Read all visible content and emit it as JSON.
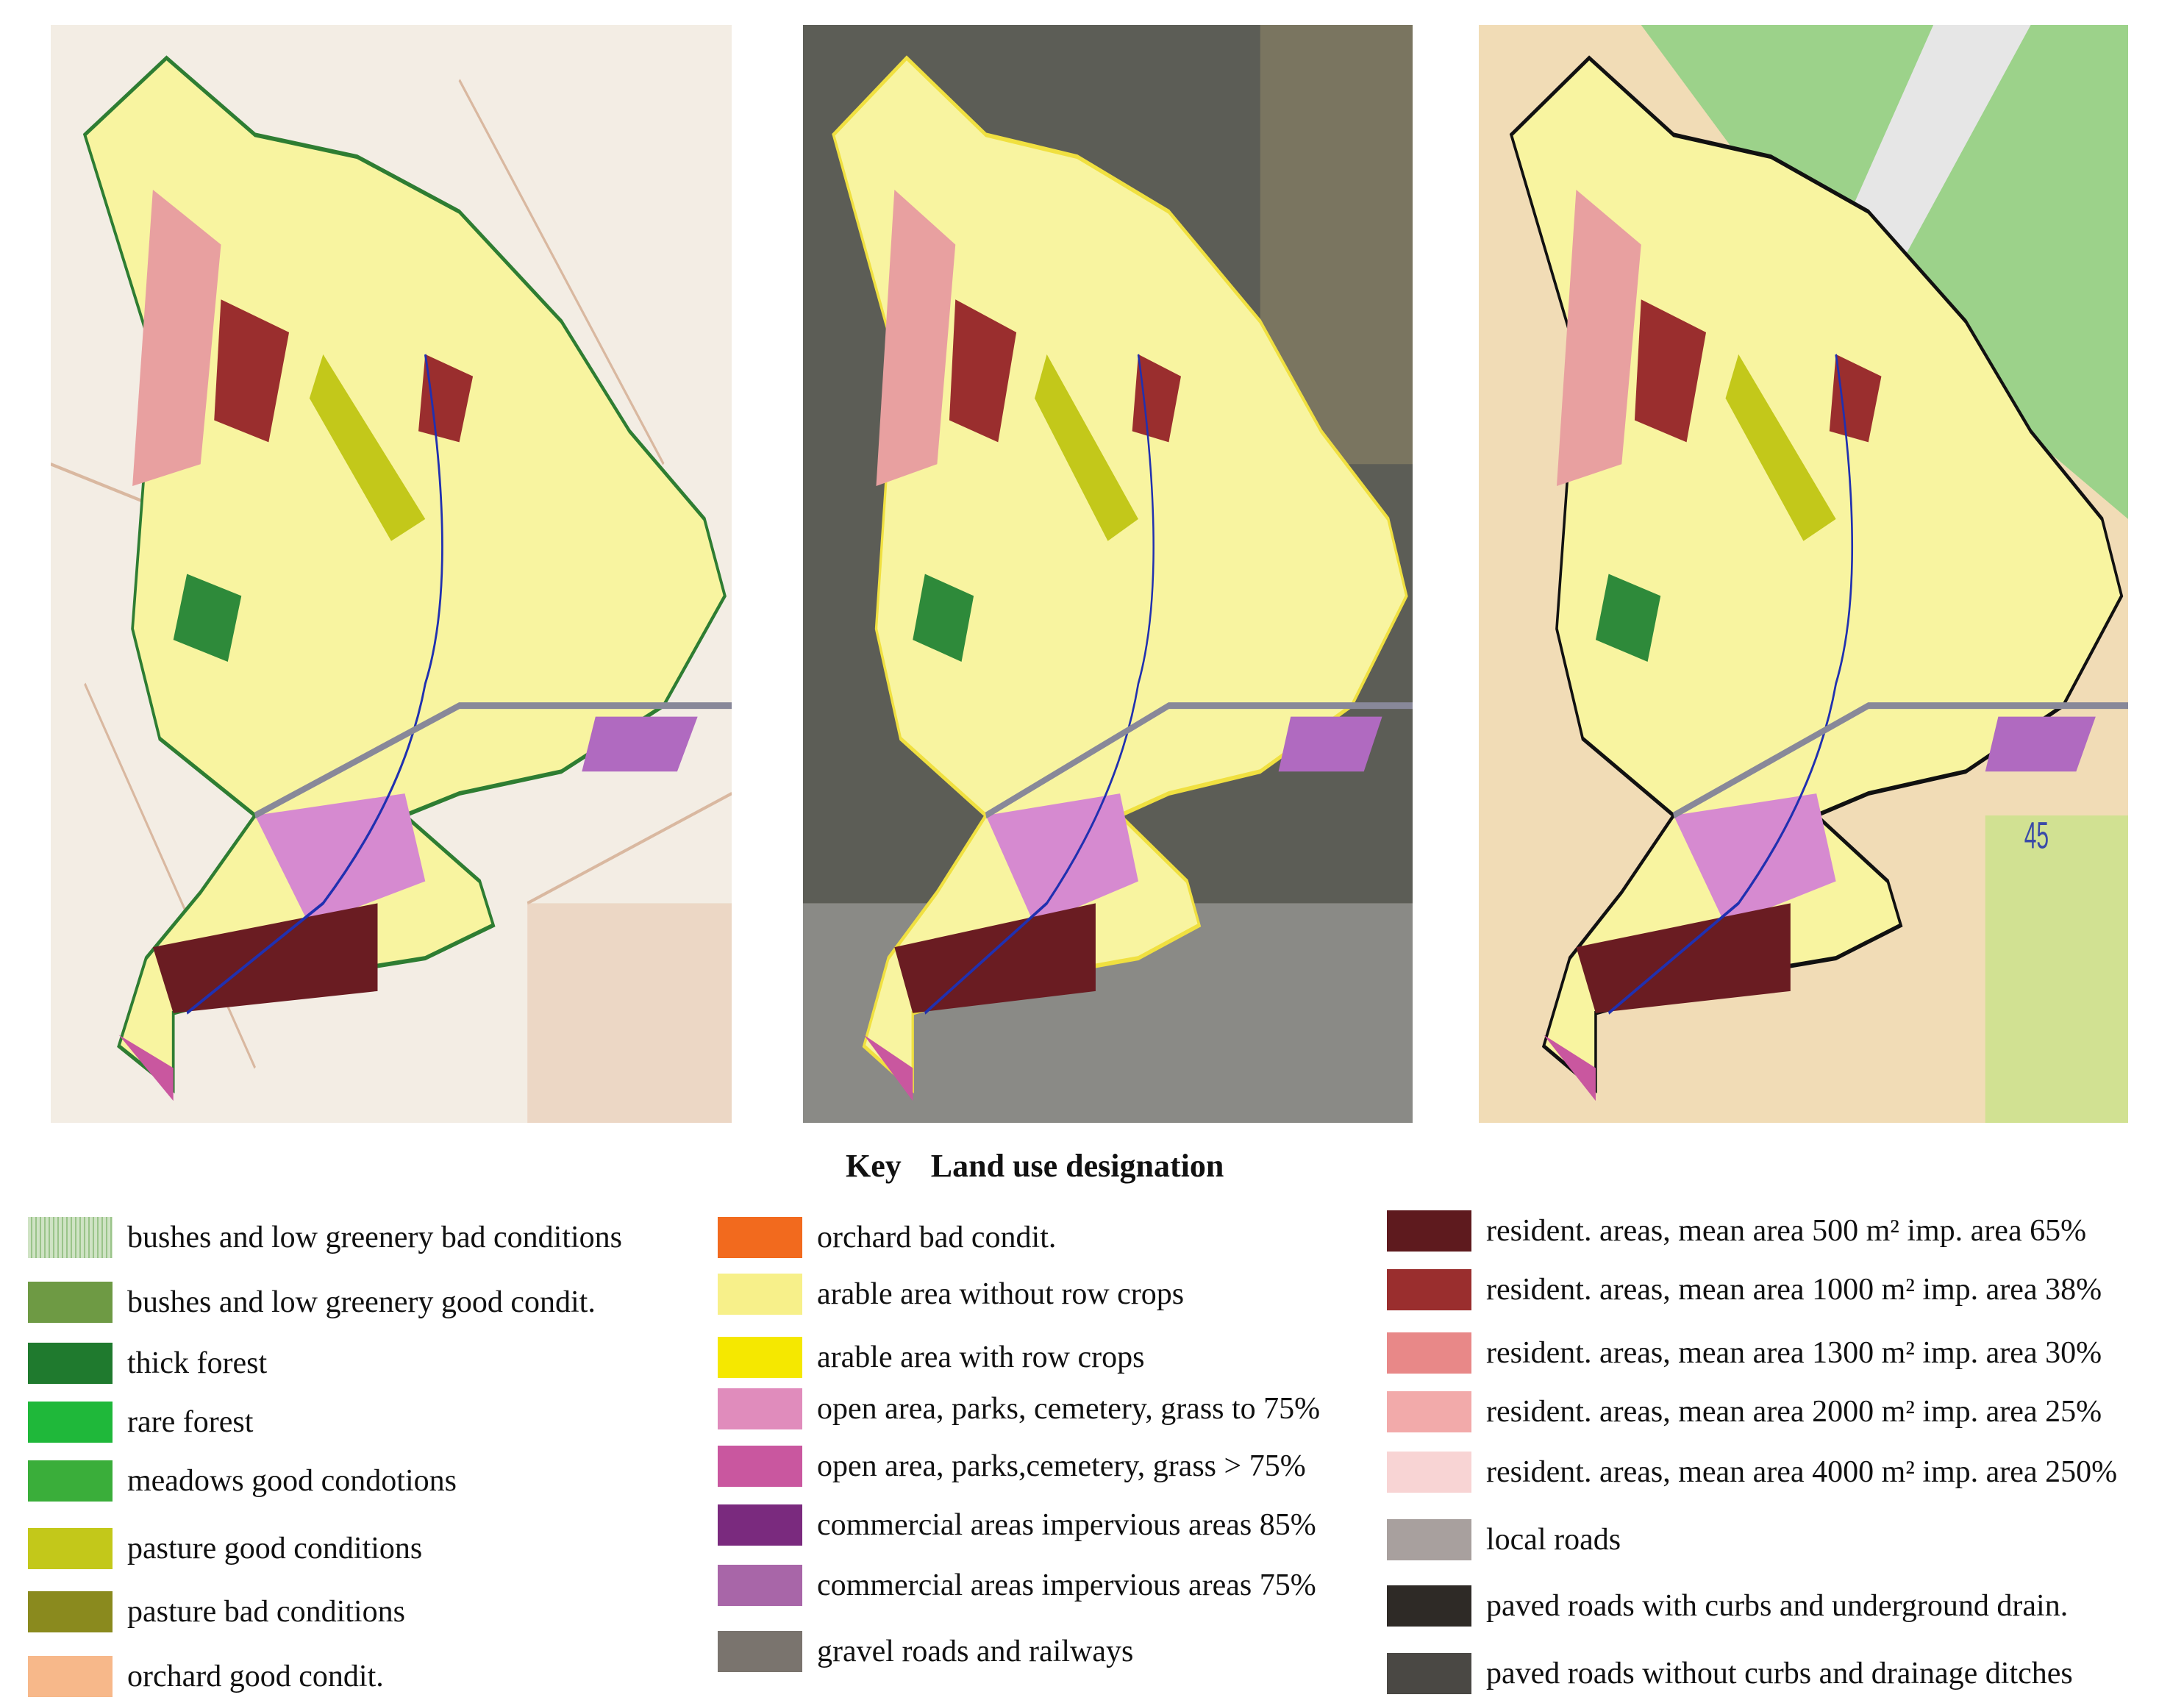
{
  "map_labels": {
    "zone_number": "45"
  },
  "key": {
    "title": "Key",
    "subtitle": "Land use designation"
  },
  "legend": {
    "columns": [
      {
        "items": [
          {
            "label": "bushes and low greenery bad conditions",
            "color": "#cfe3c4"
          },
          {
            "label": "bushes and low greenery good condit.",
            "color": "#6e9a44"
          },
          {
            "label": "thick forest",
            "color": "#1f7a2e"
          },
          {
            "label": "rare forest",
            "color": "#1fb83a"
          },
          {
            "label": "meadows good condotions",
            "color": "#3aae3a"
          },
          {
            "label": "pasture good conditions",
            "color": "#c3c81a"
          },
          {
            "label": "pasture bad conditions",
            "color": "#8a8a1e"
          },
          {
            "label": "orchard good condit.",
            "color": "#f7b88a"
          }
        ]
      },
      {
        "items": [
          {
            "label": "orchard bad condit.",
            "color": "#f26a1e"
          },
          {
            "label": "arable area without row crops",
            "color": "#f7f08a"
          },
          {
            "label": "arable area with row crops",
            "color": "#f5e800"
          },
          {
            "label": "open area, parks, cemetery, grass to 75%",
            "color": "#e08cbc"
          },
          {
            "label": "open area, parks,cemetery, grass > 75%",
            "color": "#c9579f"
          },
          {
            "label": "commercial areas impervious areas 85%",
            "color": "#7a2a7e"
          },
          {
            "label": "commercial areas impervious areas 75%",
            "color": "#a866a8"
          },
          {
            "label": "gravel roads and  railways",
            "color": "#7a746e"
          }
        ]
      },
      {
        "items": [
          {
            "label": "resident. areas, mean area 500 m² imp. area 65%",
            "color": "#5e1a1e"
          },
          {
            "label": "resident. areas, mean area 1000 m² imp. area 38%",
            "color": "#9a2e2e"
          },
          {
            "label": "resident. areas, mean area 1300 m² imp. area 30%",
            "color": "#e88888"
          },
          {
            "label": "resident. areas, mean area 2000 m² imp. area 25%",
            "color": "#f2aaaa"
          },
          {
            "label": "resident. areas, mean area 4000 m² imp. area 250%",
            "color": "#f8d4d4"
          },
          {
            "label": "local roads",
            "color": "#a8a09e"
          },
          {
            "label": "paved roads with curbs and underground drain.",
            "color": "#2e2a26"
          },
          {
            "label": "paved roads without curbs and  drainage ditches",
            "color": "#4a4844"
          }
        ]
      }
    ]
  }
}
